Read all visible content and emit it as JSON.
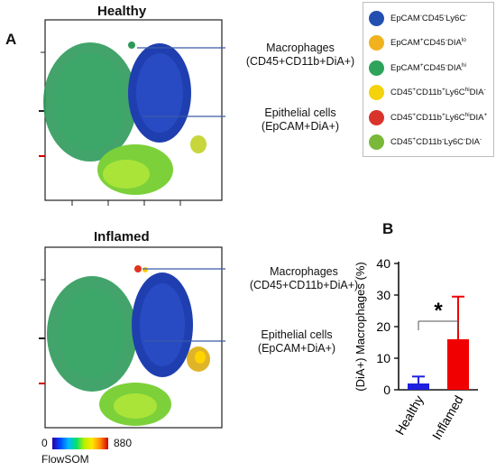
{
  "panel_a": {
    "letter": "A",
    "healthy": {
      "title": "Healthy",
      "macrophage_label_1": "Macrophages",
      "macrophage_label_2": "(CD45+CD11b+DiA+)",
      "epithelial_label_1": "Epithelial cells",
      "epithelial_label_2": "(EpCAM+DiA+)"
    },
    "inflamed": {
      "title": "Inflamed",
      "macrophage_label_1": "Macrophages",
      "macrophage_label_2": "(CD45+CD11b+DiA+)",
      "epithelial_label_1": "Epithelial cells",
      "epithelial_label_2": "(EpCAM+DiA+)"
    },
    "colorbar": {
      "min": "0",
      "max": "880",
      "label": "FlowSOM"
    }
  },
  "legend": {
    "items": [
      {
        "color": "#2350b0",
        "parts": [
          [
            "EpCAM",
            ""
          ],
          [
            "",
            "-"
          ],
          [
            "CD45",
            ""
          ],
          [
            "",
            "-"
          ],
          [
            "Ly6C",
            ""
          ],
          [
            "",
            "-"
          ]
        ]
      },
      {
        "color": "#f0b21e",
        "parts": [
          [
            "EpCAM",
            ""
          ],
          [
            "",
            "+"
          ],
          [
            "CD45",
            ""
          ],
          [
            "",
            "-"
          ],
          [
            "DIA",
            ""
          ],
          [
            "",
            "lo"
          ]
        ]
      },
      {
        "color": "#2ea35a",
        "parts": [
          [
            "EpCAM",
            ""
          ],
          [
            "",
            "+"
          ],
          [
            "CD45",
            ""
          ],
          [
            "",
            "-"
          ],
          [
            "DIA",
            ""
          ],
          [
            "",
            "hi"
          ]
        ]
      },
      {
        "color": "#f4d20c",
        "parts": [
          [
            "CD45",
            ""
          ],
          [
            "",
            "+"
          ],
          [
            "CD11b",
            ""
          ],
          [
            "",
            "+"
          ],
          [
            "Ly6C",
            ""
          ],
          [
            "",
            "hi"
          ],
          [
            "DIA",
            ""
          ],
          [
            "",
            "-"
          ]
        ]
      },
      {
        "color": "#d9342b",
        "parts": [
          [
            "CD45",
            ""
          ],
          [
            "",
            "+"
          ],
          [
            "CD11b",
            ""
          ],
          [
            "",
            "+"
          ],
          [
            "Ly6C",
            ""
          ],
          [
            "",
            "hi"
          ],
          [
            "DIA",
            ""
          ],
          [
            "",
            "+"
          ]
        ]
      },
      {
        "color": "#7ab83a",
        "parts": [
          [
            "CD45",
            ""
          ],
          [
            "",
            "+"
          ],
          [
            "CD11b",
            ""
          ],
          [
            "",
            "-"
          ],
          [
            "Ly6C",
            ""
          ],
          [
            "",
            "-"
          ],
          [
            "DIA",
            ""
          ],
          [
            "",
            "-"
          ]
        ]
      }
    ]
  },
  "chart_data": {
    "type": "bar",
    "panel_letter": "B",
    "categories": [
      "Healthy",
      "Inflamed"
    ],
    "values": [
      2.0,
      16.0
    ],
    "errors": [
      2.2,
      13.5
    ],
    "colors": [
      "#1f1fe0",
      "#f00000"
    ],
    "ylabel": "(DiA+) Macrophages (%)",
    "ylim": [
      0,
      40
    ],
    "yticks": [
      0,
      10,
      20,
      30,
      40
    ],
    "significance": "*"
  }
}
